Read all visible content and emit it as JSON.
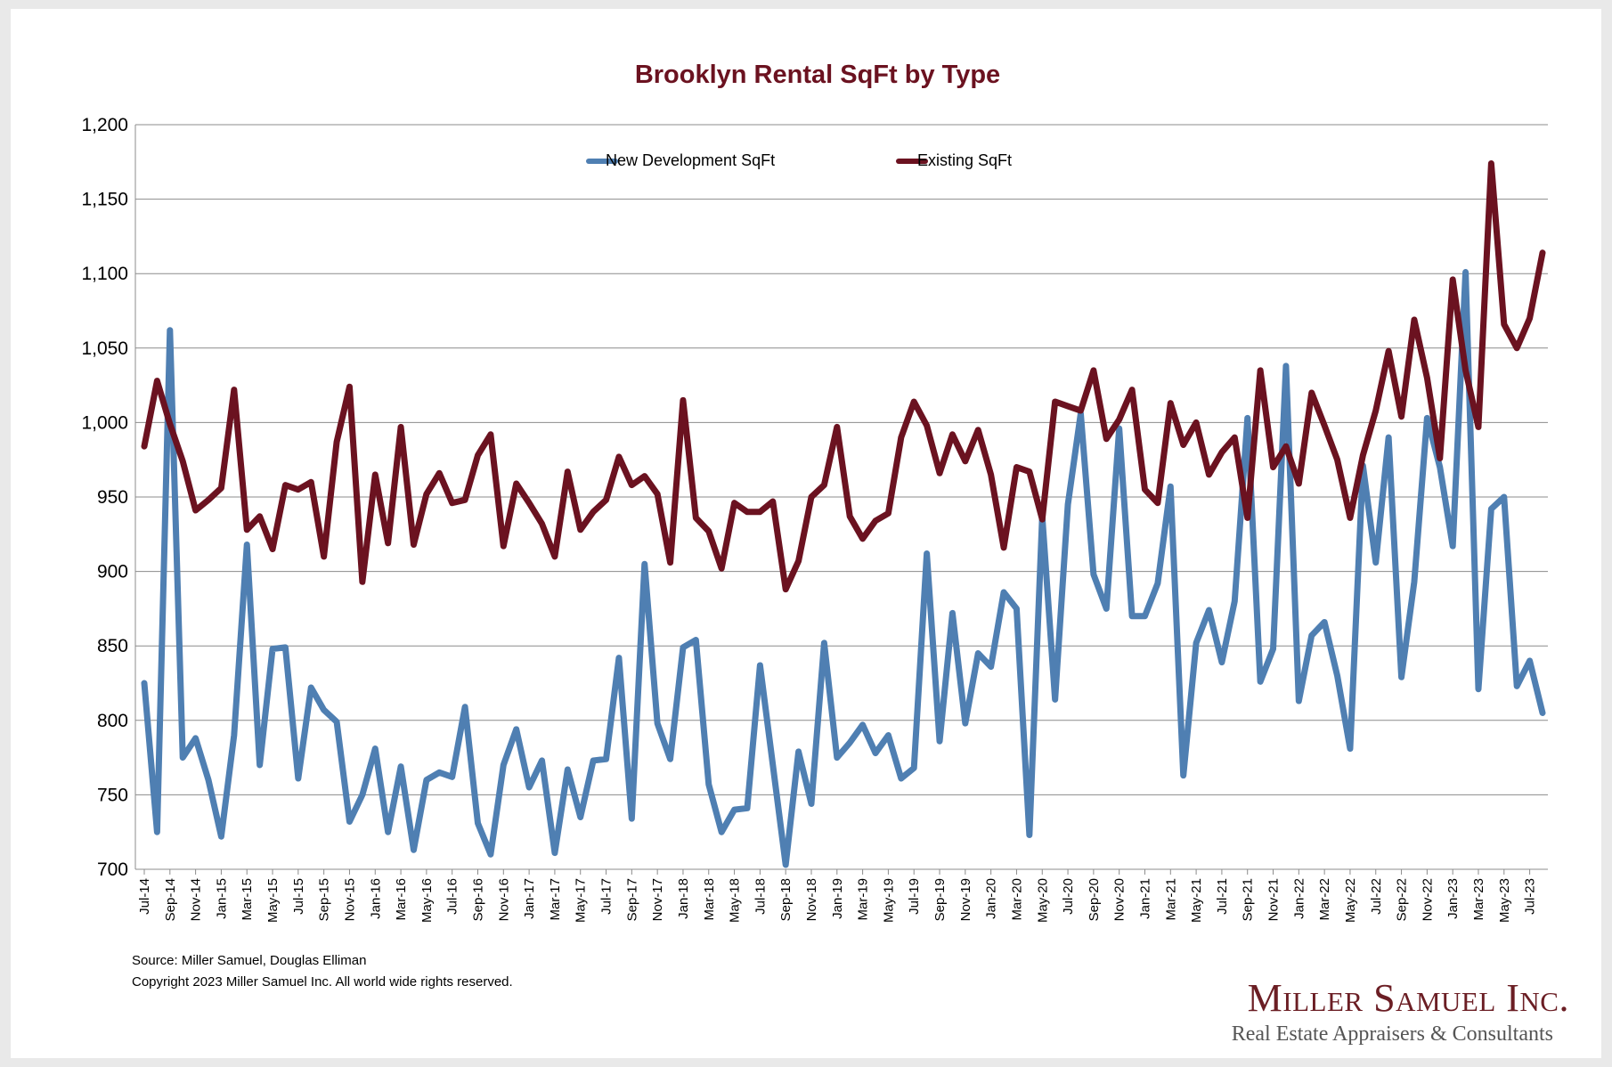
{
  "colors": {
    "new_dev": "#4f7fb2",
    "existing": "#6b1220",
    "title": "#6b1220",
    "grid": "#8c8c8c"
  },
  "chart_data": {
    "type": "line",
    "title": "Brooklyn Rental SqFt by Type",
    "ylim": [
      700,
      1200
    ],
    "yticks": [
      "700",
      "750",
      "800",
      "850",
      "900",
      "950",
      "1,000",
      "1,050",
      "1,100",
      "1,150",
      "1,200"
    ],
    "grid": true,
    "legend_placement": "top-center",
    "x": [
      "Jul-14",
      "Aug-14",
      "Sep-14",
      "Oct-14",
      "Nov-14",
      "Dec-14",
      "Jan-15",
      "Feb-15",
      "Mar-15",
      "Apr-15",
      "May-15",
      "Jun-15",
      "Jul-15",
      "Aug-15",
      "Sep-15",
      "Oct-15",
      "Nov-15",
      "Dec-15",
      "Jan-16",
      "Feb-16",
      "Mar-16",
      "Apr-16",
      "May-16",
      "Jun-16",
      "Jul-16",
      "Aug-16",
      "Sep-16",
      "Oct-16",
      "Nov-16",
      "Dec-16",
      "Jan-17",
      "Feb-17",
      "Mar-17",
      "Apr-17",
      "May-17",
      "Jun-17",
      "Jul-17",
      "Aug-17",
      "Sep-17",
      "Oct-17",
      "Nov-17",
      "Dec-17",
      "Jan-18",
      "Feb-18",
      "Mar-18",
      "Apr-18",
      "May-18",
      "Jun-18",
      "Jul-18",
      "Aug-18",
      "Sep-18",
      "Oct-18",
      "Nov-18",
      "Dec-18",
      "Jan-19",
      "Feb-19",
      "Mar-19",
      "Apr-19",
      "May-19",
      "Jun-19",
      "Jul-19",
      "Aug-19",
      "Sep-19",
      "Oct-19",
      "Nov-19",
      "Dec-19",
      "Jan-20",
      "Feb-20",
      "Mar-20",
      "Apr-20",
      "May-20",
      "Jun-20",
      "Jul-20",
      "Aug-20",
      "Sep-20",
      "Oct-20",
      "Nov-20",
      "Dec-20",
      "Jan-21",
      "Feb-21",
      "Mar-21",
      "Apr-21",
      "May-21",
      "Jun-21",
      "Jul-21",
      "Aug-21",
      "Sep-21",
      "Oct-21",
      "Nov-21",
      "Dec-21",
      "Jan-22",
      "Feb-22",
      "Mar-22",
      "Apr-22",
      "May-22",
      "Jun-22",
      "Jul-22",
      "Aug-22",
      "Sep-22",
      "Oct-22",
      "Nov-22",
      "Dec-22",
      "Jan-23",
      "Feb-23",
      "Mar-23",
      "Apr-23",
      "May-23",
      "Jun-23",
      "Jul-23",
      "Aug-23"
    ],
    "series": [
      {
        "name": "New Development SqFt",
        "color": "#4f7fb2",
        "values": [
          825,
          725,
          1062,
          775,
          788,
          760,
          722,
          790,
          918,
          770,
          848,
          849,
          761,
          822,
          807,
          799,
          732,
          750,
          781,
          725,
          769,
          713,
          760,
          765,
          762,
          809,
          731,
          710,
          770,
          794,
          755,
          773,
          711,
          767,
          735,
          773,
          774,
          842,
          734,
          905,
          798,
          774,
          849,
          854,
          757,
          725,
          740,
          741,
          837,
          770,
          703,
          779,
          744,
          852,
          775,
          785,
          797,
          778,
          790,
          761,
          768,
          912,
          786,
          872,
          798,
          845,
          836,
          886,
          875,
          723,
          937,
          814,
          945,
          1006,
          898,
          875,
          996,
          870,
          870,
          892,
          957,
          763,
          852,
          874,
          839,
          880,
          1003,
          826,
          848,
          1038,
          813,
          857,
          866,
          830,
          781,
          971,
          906,
          990,
          829,
          893,
          1003,
          970,
          917,
          1101,
          821,
          942,
          950,
          823,
          840,
          805
        ]
      },
      {
        "name": "Existing SqFt",
        "color": "#6b1220",
        "values": [
          984,
          1028,
          999,
          974,
          941,
          948,
          956,
          1022,
          928,
          937,
          915,
          958,
          955,
          960,
          910,
          987,
          1024,
          893,
          965,
          919,
          997,
          918,
          952,
          966,
          946,
          948,
          978,
          992,
          917,
          959,
          946,
          932,
          910,
          967,
          928,
          940,
          948,
          977,
          958,
          964,
          952,
          906,
          1015,
          936,
          927,
          902,
          946,
          940,
          940,
          947,
          888,
          907,
          950,
          958,
          997,
          937,
          922,
          934,
          939,
          990,
          1014,
          998,
          966,
          992,
          974,
          995,
          965,
          916,
          970,
          967,
          935,
          1014,
          1011,
          1008,
          1035,
          989,
          1002,
          1022,
          955,
          946,
          1013,
          985,
          1000,
          965,
          980,
          990,
          936,
          1035,
          970,
          984,
          959,
          1020,
          998,
          975,
          936,
          978,
          1008,
          1048,
          1004,
          1069,
          1030,
          976,
          1096,
          1035,
          997,
          1174,
          1066,
          1050,
          1070,
          1114
        ]
      }
    ]
  },
  "footer": {
    "source": "Source: Miller Samuel, Douglas Elliman",
    "copyright": "Copyright 2023 Miller Samuel Inc.  All world wide rights reserved."
  },
  "logo": {
    "name": "Miller Samuel Inc.",
    "tagline": "Real Estate Appraisers & Consultants"
  }
}
